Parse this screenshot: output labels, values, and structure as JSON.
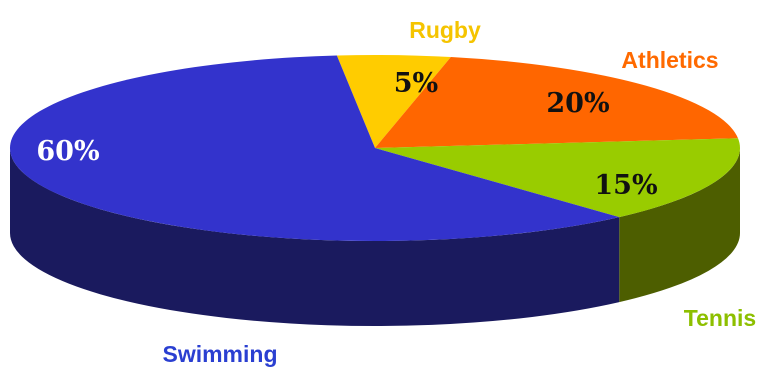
{
  "chart_data": {
    "type": "pie",
    "title": "",
    "categories": [
      "Rugby",
      "Athletics",
      "Tennis",
      "Swimming"
    ],
    "values": [
      5,
      20,
      15,
      60
    ],
    "value_labels": [
      "5%",
      "20%",
      "15%",
      "60%"
    ],
    "colors": {
      "Rugby": {
        "top": "#ffcc00",
        "side": "#b38f00",
        "label": "#f5c400"
      },
      "Athletics": {
        "top": "#ff6600",
        "side": "#a04000",
        "label": "#ff6a00"
      },
      "Tennis": {
        "top": "#99cc00",
        "side": "#4d5e00",
        "label": "#8dbf00"
      },
      "Swimming": {
        "top": "#3333cc",
        "side": "#1a1a5e",
        "label": "#2a3fd1"
      }
    },
    "percent_label_colors": {
      "Swimming": "#ffffff",
      "default": "#111111"
    },
    "style": "3d-pie",
    "legend": "none"
  }
}
